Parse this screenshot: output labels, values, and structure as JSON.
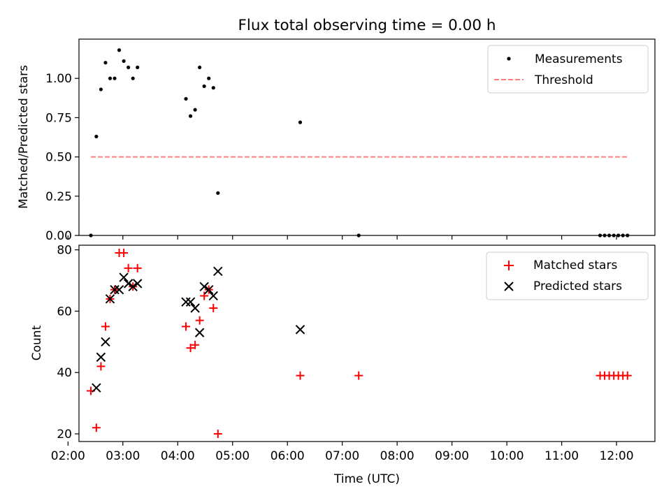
{
  "title": "Flux total observing time = 0.00 h",
  "chart_data": [
    {
      "type": "scatter",
      "ylabel": "Matched/Predicted stars",
      "ylim": [
        0,
        1.25
      ],
      "xlim": [
        "02:12",
        "12:42"
      ],
      "yticks": [
        "0.00",
        "0.25",
        "0.50",
        "0.75",
        "1.00"
      ],
      "legend_position": "top-right",
      "series": [
        {
          "name": "Measurements",
          "marker": "dot",
          "color": "#000000",
          "points": [
            [
              "02:25",
              0.0
            ],
            [
              "02:31",
              0.63
            ],
            [
              "02:36",
              0.93
            ],
            [
              "02:41",
              1.1
            ],
            [
              "02:46",
              1.0
            ],
            [
              "02:51",
              1.0
            ],
            [
              "02:56",
              1.18
            ],
            [
              "03:01",
              1.11
            ],
            [
              "03:06",
              1.07
            ],
            [
              "03:11",
              1.0
            ],
            [
              "03:16",
              1.07
            ],
            [
              "04:09",
              0.87
            ],
            [
              "04:14",
              0.76
            ],
            [
              "04:19",
              0.8
            ],
            [
              "04:24",
              1.07
            ],
            [
              "04:29",
              0.95
            ],
            [
              "04:34",
              1.0
            ],
            [
              "04:39",
              0.94
            ],
            [
              "04:44",
              0.27
            ],
            [
              "06:14",
              0.72
            ],
            [
              "07:18",
              0.0
            ],
            [
              "11:42",
              0.0
            ],
            [
              "11:47",
              0.0
            ],
            [
              "11:52",
              0.0
            ],
            [
              "11:57",
              0.0
            ],
            [
              "12:02",
              0.0
            ],
            [
              "12:07",
              0.0
            ],
            [
              "12:12",
              0.0
            ]
          ]
        },
        {
          "name": "Threshold",
          "marker": "dashed-line",
          "color": "#ff7f7f",
          "points": [
            [
              "02:25",
              0.5
            ],
            [
              "12:12",
              0.5
            ]
          ]
        }
      ]
    },
    {
      "type": "scatter",
      "xlabel": "Time (UTC)",
      "ylabel": "Count",
      "ylim": [
        17.5,
        81.5
      ],
      "xlim": [
        "02:12",
        "12:42"
      ],
      "yticks": [
        "20",
        "40",
        "60",
        "80"
      ],
      "xticks": [
        "02:00",
        "03:00",
        "04:00",
        "05:00",
        "06:00",
        "07:00",
        "08:00",
        "09:00",
        "10:00",
        "11:00",
        "12:00"
      ],
      "legend_position": "top-right",
      "series": [
        {
          "name": "Matched stars",
          "marker": "plus",
          "color": "#ff0000",
          "points": [
            [
              "02:25",
              34
            ],
            [
              "02:31",
              22
            ],
            [
              "02:36",
              42
            ],
            [
              "02:41",
              55
            ],
            [
              "02:46",
              64
            ],
            [
              "02:51",
              67
            ],
            [
              "02:56",
              79
            ],
            [
              "03:01",
              79
            ],
            [
              "03:06",
              74
            ],
            [
              "03:11",
              68
            ],
            [
              "03:16",
              74
            ],
            [
              "04:09",
              55
            ],
            [
              "04:14",
              48
            ],
            [
              "04:19",
              49
            ],
            [
              "04:24",
              57
            ],
            [
              "04:29",
              65
            ],
            [
              "04:34",
              67
            ],
            [
              "04:39",
              61
            ],
            [
              "04:44",
              20
            ],
            [
              "06:14",
              39
            ],
            [
              "07:18",
              39
            ],
            [
              "11:42",
              39
            ],
            [
              "11:47",
              39
            ],
            [
              "11:52",
              39
            ],
            [
              "11:57",
              39
            ],
            [
              "12:02",
              39
            ],
            [
              "12:07",
              39
            ],
            [
              "12:12",
              39
            ]
          ]
        },
        {
          "name": "Predicted stars",
          "marker": "x",
          "color": "#000000",
          "points": [
            [
              "02:31",
              35
            ],
            [
              "02:36",
              45
            ],
            [
              "02:41",
              50
            ],
            [
              "02:46",
              64
            ],
            [
              "02:51",
              67
            ],
            [
              "02:56",
              67
            ],
            [
              "03:01",
              71
            ],
            [
              "03:06",
              69
            ],
            [
              "03:11",
              68
            ],
            [
              "03:16",
              69
            ],
            [
              "04:09",
              63
            ],
            [
              "04:14",
              63
            ],
            [
              "04:19",
              61
            ],
            [
              "04:24",
              53
            ],
            [
              "04:29",
              68
            ],
            [
              "04:34",
              67
            ],
            [
              "04:39",
              65
            ],
            [
              "04:44",
              73
            ],
            [
              "06:14",
              54
            ]
          ]
        }
      ]
    }
  ]
}
